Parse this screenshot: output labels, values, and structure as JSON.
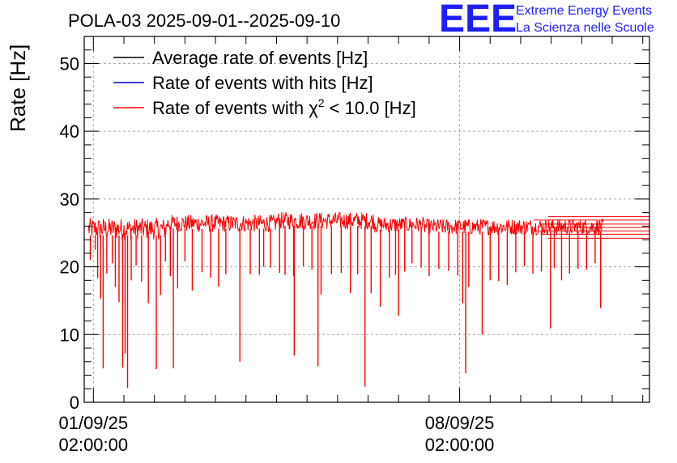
{
  "chart_data": {
    "type": "line",
    "title": "POLA-03 2025-09-01--2025-09-10",
    "ylabel": "Rate [Hz]",
    "xlabel": "",
    "ylim": [
      0,
      54
    ],
    "yticks": [
      0,
      10,
      20,
      30,
      40,
      50
    ],
    "xlim_days": [
      -0.15,
      9.11
    ],
    "xticks": [
      {
        "day": 0,
        "line1": "01/09/25",
        "line2": "02:00:00"
      },
      {
        "day": 6,
        "line1": "08/09/25",
        "line2": "02:00:00"
      }
    ],
    "grid": true,
    "legend_position": "top-left",
    "series": [
      {
        "name": "Average rate of events [Hz]",
        "color": "#000000",
        "baseline": 25.8
      },
      {
        "name": "Rate of events with hits [Hz]",
        "color": "#0000cc",
        "baseline": 25.8
      },
      {
        "name": "Rate of events with χ",
        "sup": "2",
        "name_tail": " < 10.0 [Hz]",
        "color": "#ff0000",
        "baseline": 25.8
      }
    ],
    "red_profile": {
      "data_start_day": -0.08,
      "data_end_day": 8.35,
      "segments": [
        {
          "start": -0.08,
          "end": 1.2,
          "center": 25.6,
          "spread": 1.6
        },
        {
          "start": 1.2,
          "end": 3.0,
          "center": 26.4,
          "spread": 1.3
        },
        {
          "start": 3.0,
          "end": 4.6,
          "center": 26.8,
          "spread": 1.3
        },
        {
          "start": 4.6,
          "end": 5.4,
          "center": 26.2,
          "spread": 1.2
        },
        {
          "start": 5.4,
          "end": 8.35,
          "center": 25.9,
          "spread": 1.2
        }
      ],
      "dips": [
        [
          -0.05,
          21.0
        ],
        [
          0.03,
          22.5
        ],
        [
          0.07,
          18.3
        ],
        [
          0.12,
          15.3
        ],
        [
          0.16,
          5.0
        ],
        [
          0.22,
          19.0
        ],
        [
          0.31,
          20.5
        ],
        [
          0.36,
          17.0
        ],
        [
          0.42,
          14.8
        ],
        [
          0.48,
          5.1
        ],
        [
          0.52,
          7.2
        ],
        [
          0.56,
          2.1
        ],
        [
          0.62,
          18.0
        ],
        [
          0.7,
          20.2
        ],
        [
          0.79,
          17.8
        ],
        [
          0.9,
          14.6
        ],
        [
          1.03,
          4.9
        ],
        [
          1.1,
          15.8
        ],
        [
          1.18,
          20.8
        ],
        [
          1.26,
          18.6
        ],
        [
          1.31,
          5.0
        ],
        [
          1.38,
          16.8
        ],
        [
          1.5,
          20.8
        ],
        [
          1.62,
          16.5
        ],
        [
          1.78,
          19.2
        ],
        [
          1.92,
          18.4
        ],
        [
          2.05,
          17.1
        ],
        [
          2.17,
          18.9
        ],
        [
          2.4,
          6.0
        ],
        [
          2.57,
          18.9
        ],
        [
          2.72,
          18.8
        ],
        [
          2.79,
          20.0
        ],
        [
          2.9,
          19.9
        ],
        [
          3.05,
          19.1
        ],
        [
          3.14,
          18.8
        ],
        [
          3.28,
          18.6
        ],
        [
          3.29,
          6.9
        ],
        [
          3.44,
          20.1
        ],
        [
          3.58,
          19.6
        ],
        [
          3.68,
          5.3
        ],
        [
          3.73,
          15.9
        ],
        [
          3.9,
          18.9
        ],
        [
          4.06,
          19.1
        ],
        [
          4.21,
          16.1
        ],
        [
          4.33,
          18.9
        ],
        [
          4.45,
          2.3
        ],
        [
          4.55,
          16.1
        ],
        [
          4.7,
          14.1
        ],
        [
          4.85,
          18.4
        ],
        [
          4.95,
          18.8
        ],
        [
          5.0,
          12.8
        ],
        [
          5.1,
          19.3
        ],
        [
          5.22,
          20.5
        ],
        [
          5.37,
          19.9
        ],
        [
          5.5,
          18.6
        ],
        [
          5.66,
          19.7
        ],
        [
          5.82,
          19.4
        ],
        [
          5.97,
          18.7
        ],
        [
          6.05,
          14.6
        ],
        [
          6.1,
          4.3
        ],
        [
          6.15,
          17.0
        ],
        [
          6.37,
          10.0
        ],
        [
          6.5,
          18.0
        ],
        [
          6.64,
          17.9
        ],
        [
          6.78,
          17.3
        ],
        [
          6.92,
          19.2
        ],
        [
          7.06,
          20.1
        ],
        [
          7.2,
          19.0
        ],
        [
          7.34,
          19.3
        ],
        [
          7.49,
          10.9
        ],
        [
          7.55,
          19.8
        ],
        [
          7.67,
          18.0
        ],
        [
          7.8,
          19.0
        ],
        [
          7.94,
          19.7
        ],
        [
          8.08,
          19.6
        ],
        [
          8.22,
          20.5
        ],
        [
          8.31,
          13.9
        ]
      ],
      "tail_lines": [
        24.2,
        24.8,
        25.3,
        25.8,
        26.3,
        26.9,
        27.4
      ]
    }
  },
  "logo": {
    "mark": "EEE",
    "line1": "Extreme Energy Events",
    "line2": "La Scienza nelle Scuole"
  }
}
